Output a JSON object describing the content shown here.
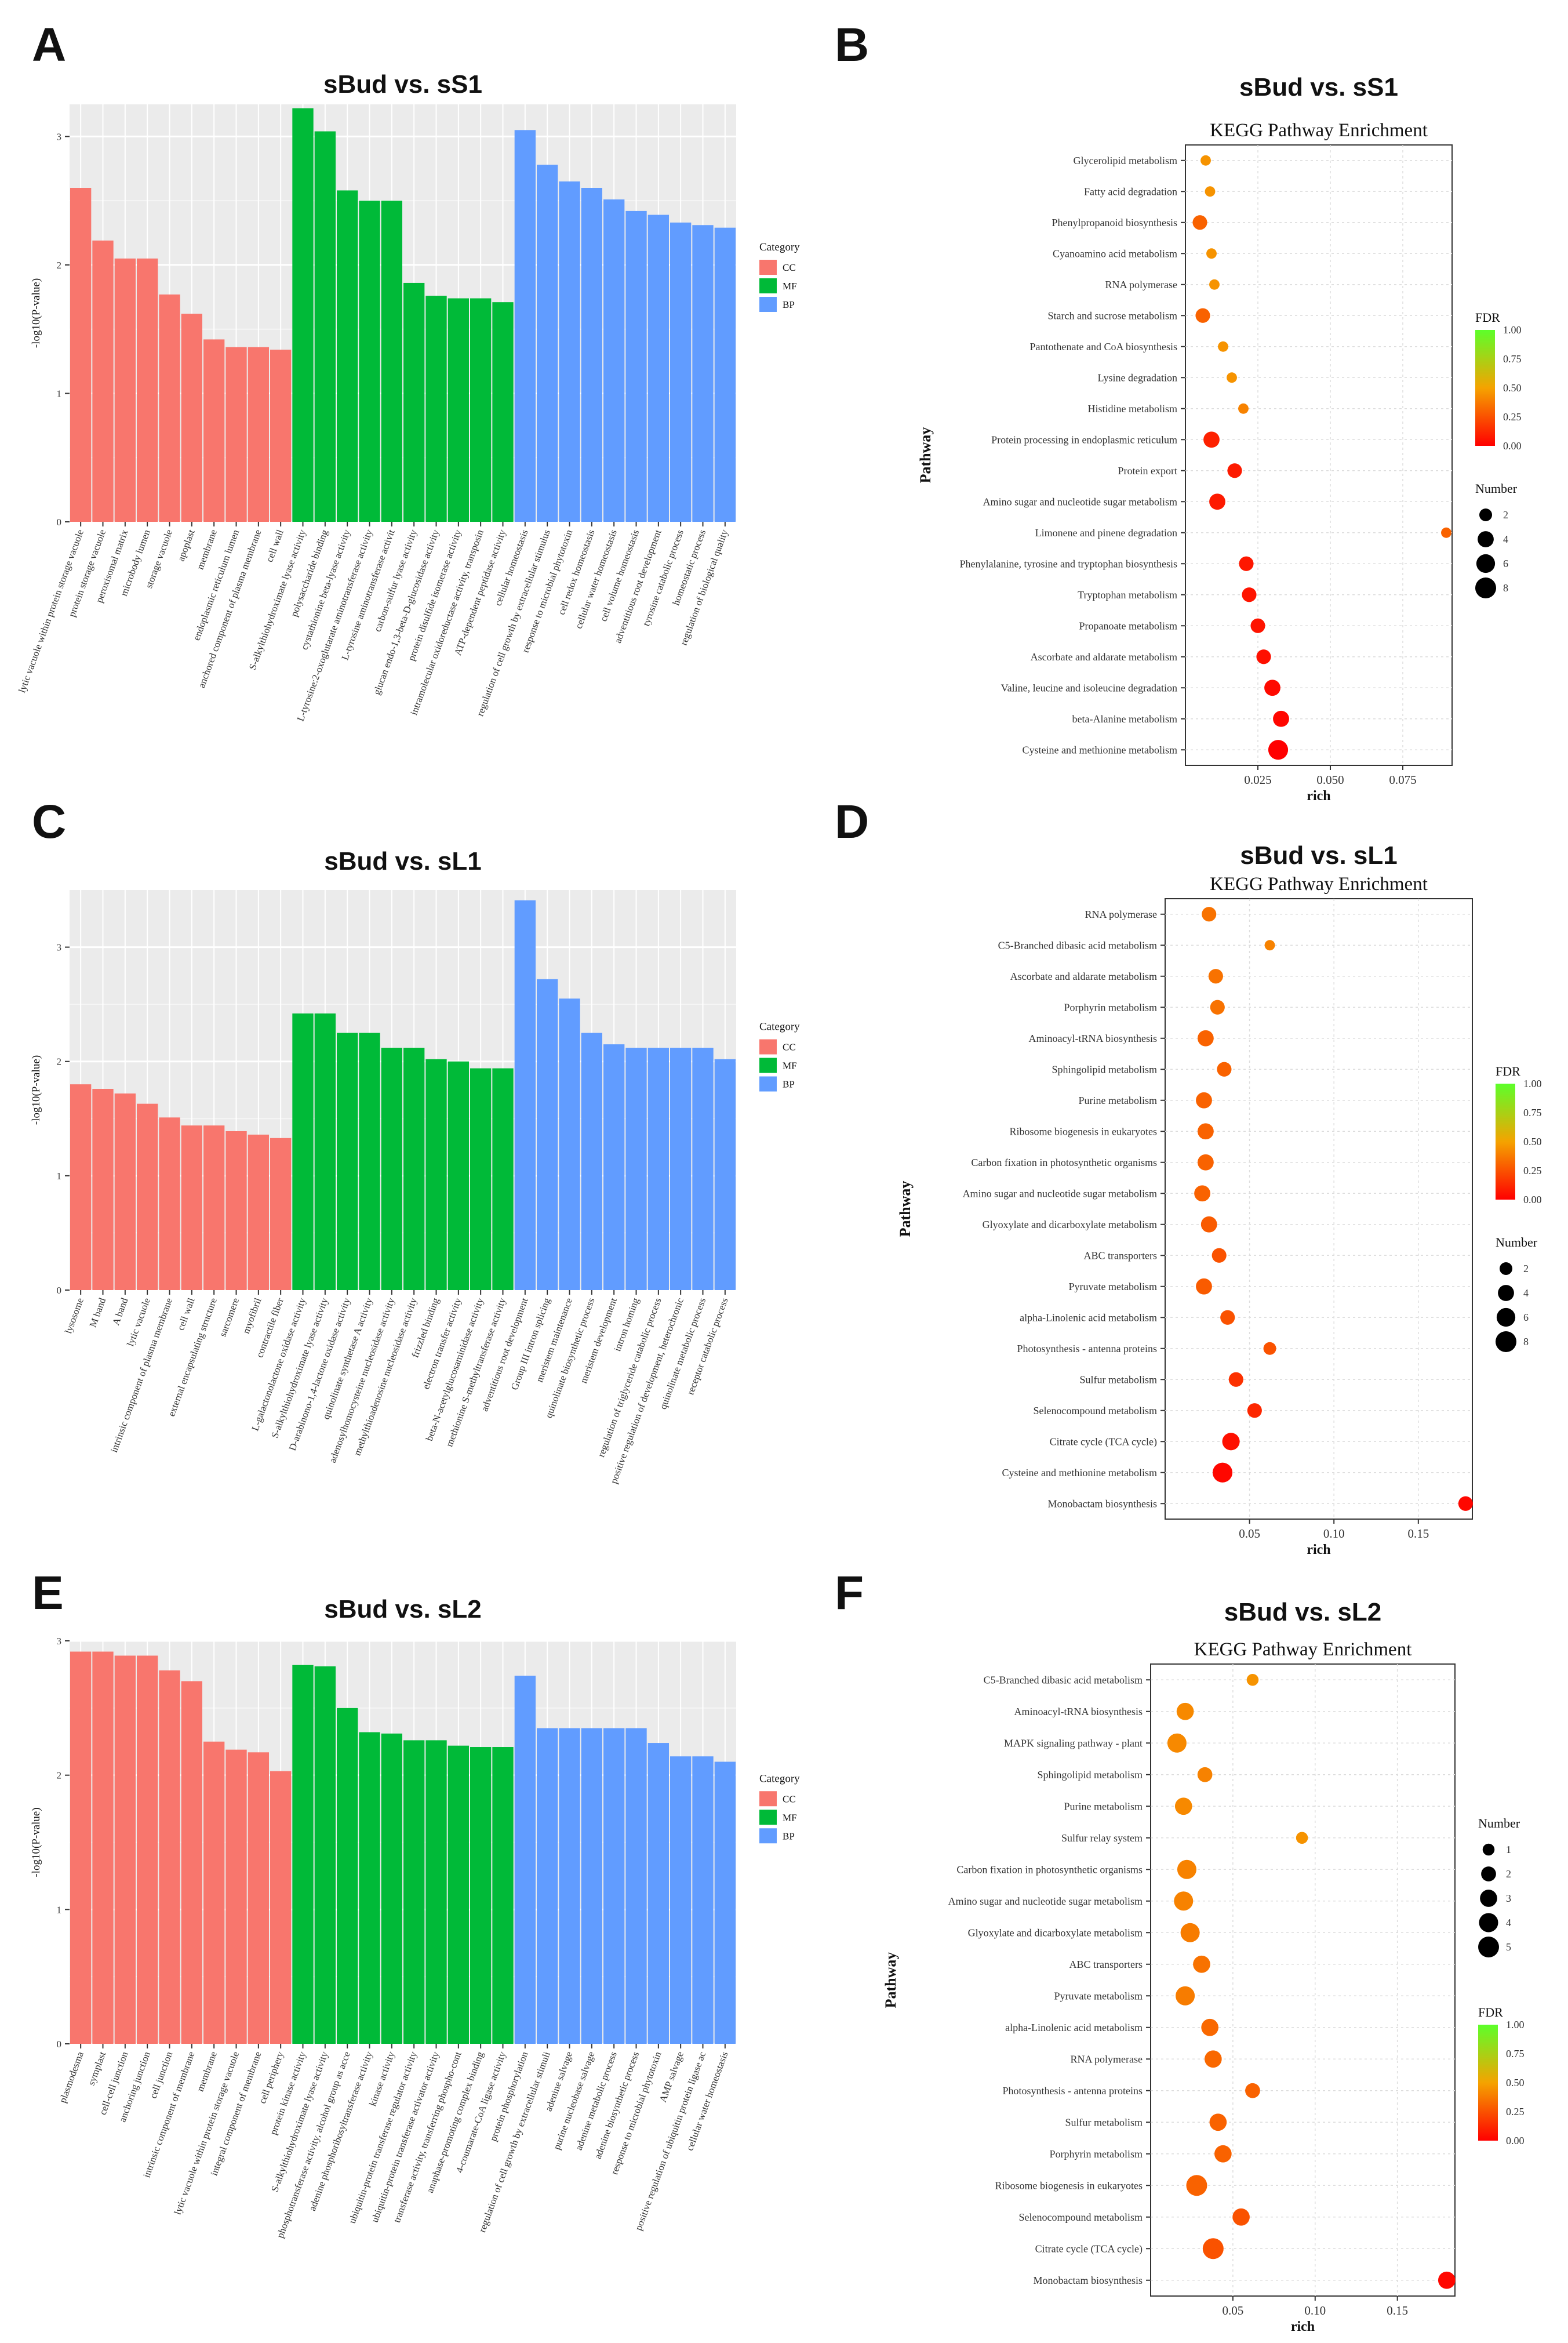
{
  "figure": {
    "colors": {
      "CC": "#F8766D",
      "MF": "#00BA38",
      "BP": "#619CFF",
      "panel_bg": "#EBEBEB",
      "grid": "#FFFFFF",
      "fdr_low": "#FF0000",
      "fdr_mid": "#F5A300",
      "fdr_high": "#5CFF2A"
    }
  },
  "chart_data": [
    {
      "panel": "A",
      "type": "bar",
      "title": "sBud vs. sS1",
      "ylabel": "-log10(P-value)",
      "ylim": [
        0,
        3.25
      ],
      "yticks": [
        0,
        1,
        2,
        3
      ],
      "legend": {
        "title": "Category",
        "items": [
          "CC",
          "MF",
          "BP"
        ],
        "position": "right"
      },
      "categories": [
        "lytic vacuole within protein storage vacuole",
        "protein storage vacuole",
        "peroxisomal matrix",
        "microbody lumen",
        "storage vacuole",
        "apoplast",
        "membrane",
        "endoplasmic reticulum lumen",
        "anchored component of plasma membrane",
        "cell wall",
        "S-alkylthiohydroximate lyase activity",
        "polysaccharide binding",
        "cystathionine beta-lyase activity",
        "L-tyrosine:2-oxoglutarate aminotransferase activity",
        "L-tyrosine aminotransferase activit",
        "carbon-sulfur lyase activity",
        "glucan endo-1,3-beta-D-glucosidase activity",
        "protein disulfide isomerase activity",
        "intramolecular oxidoreductase activity, transposin",
        "ATP-dependent peptidase activity",
        "cellular homeostasis",
        "regulation of cell growth by extracellular stimulus",
        "response to microbial phytotoxin",
        "cell redox homeostasis",
        "cellular water homeostasis",
        "cell volume homeostasis",
        "adventitious root development",
        "tyrosine catabolic process",
        "homeostatic process",
        "regulation of biological quality"
      ],
      "groups": [
        "CC",
        "CC",
        "CC",
        "CC",
        "CC",
        "CC",
        "CC",
        "CC",
        "CC",
        "CC",
        "MF",
        "MF",
        "MF",
        "MF",
        "MF",
        "MF",
        "MF",
        "MF",
        "MF",
        "MF",
        "BP",
        "BP",
        "BP",
        "BP",
        "BP",
        "BP",
        "BP",
        "BP",
        "BP",
        "BP"
      ],
      "values": [
        2.6,
        2.19,
        2.05,
        2.05,
        1.77,
        1.62,
        1.42,
        1.36,
        1.36,
        1.34,
        3.22,
        3.04,
        2.58,
        2.5,
        2.5,
        1.86,
        1.76,
        1.74,
        1.74,
        1.71,
        3.05,
        2.78,
        2.65,
        2.6,
        2.51,
        2.42,
        2.39,
        2.33,
        2.31,
        2.29
      ]
    },
    {
      "panel": "B",
      "type": "scatter",
      "title": "sBud vs. sS1",
      "subtitle": "KEGG Pathway Enrichment",
      "xlabel": "rich",
      "ylabel": "Pathway",
      "xlim": [
        0,
        0.092
      ],
      "xticks": [
        0.025,
        0.05,
        0.075
      ],
      "xtick_labels": [
        "0.025",
        "0.050",
        "0.075"
      ],
      "legend_fdr": {
        "title": "FDR",
        "labels": [
          "1.00",
          "0.75",
          "0.50",
          "0.25",
          "0.00"
        ]
      },
      "legend_number": {
        "title": "Number",
        "labels": [
          "2",
          "4",
          "6",
          "8"
        ],
        "values": [
          2,
          4,
          6,
          8
        ]
      },
      "pathways": [
        "Glycerolipid metabolism",
        "Fatty acid degradation",
        "Phenylpropanoid biosynthesis",
        "Cyanoamino acid metabolism",
        "RNA polymerase",
        "Starch and sucrose metabolism",
        "Pantothenate and CoA biosynthesis",
        "Lysine degradation",
        "Histidine metabolism",
        "Protein processing in endoplasmic reticulum",
        "Protein export",
        "Amino sugar and nucleotide sugar metabolism",
        "Limonene and pinene degradation",
        "Phenylalanine, tyrosine and tryptophan biosynthesis",
        "Tryptophan metabolism",
        "Propanoate metabolism",
        "Ascorbate and aldarate metabolism",
        "Valine, leucine and isoleucine degradation",
        "beta-Alanine metabolism",
        "Cysteine and methionine metabolism"
      ],
      "rich": [
        0.007,
        0.0085,
        0.005,
        0.009,
        0.01,
        0.006,
        0.013,
        0.016,
        0.02,
        0.009,
        0.017,
        0.011,
        0.09,
        0.021,
        0.022,
        0.025,
        0.027,
        0.03,
        0.033,
        0.032
      ],
      "number": [
        1,
        1,
        3,
        1,
        1,
        3,
        1,
        1,
        1,
        4,
        3,
        4,
        1,
        3,
        3,
        3,
        3,
        4,
        4,
        7
      ],
      "fdr": [
        0.45,
        0.45,
        0.3,
        0.45,
        0.45,
        0.3,
        0.45,
        0.45,
        0.4,
        0.1,
        0.08,
        0.08,
        0.3,
        0.07,
        0.06,
        0.06,
        0.05,
        0.03,
        0.02,
        0.0
      ]
    },
    {
      "panel": "C",
      "type": "bar",
      "title": "sBud vs. sL1",
      "ylabel": "-log10(P-value)",
      "ylim": [
        0,
        3.5
      ],
      "yticks": [
        0,
        1,
        2,
        3
      ],
      "legend": {
        "title": "Category",
        "items": [
          "CC",
          "MF",
          "BP"
        ],
        "position": "right"
      },
      "categories": [
        "lysosome",
        "M band",
        "A band",
        "lytic vacuole",
        "intrinsic component of plasma membrane",
        "cell wall",
        "external encapsulating structure",
        "sarcomere",
        "myofibril",
        "contractile fiber",
        "L-galactonolactone oxidase activity",
        "S-alkylthiohydroximate lyase activity",
        "D-arabinono-1,4-lactone oxidase activity",
        "quinolinate synthetase A activity",
        "adenosylhomocysteine nucleosidase activity",
        "methylthioadenosine nucleosidase activity",
        "frizzled binding",
        "electron transfer activity",
        "beta-N-acetylglucosaminidase activity",
        "methionine S-methyltransferase activity",
        "adventitious root development",
        "Group III intron splicing",
        "meristem maintenance",
        "quinolinate biosynthetic process",
        "meristem development",
        "intron homing",
        "regulation of triglyceride catabolic process",
        "positive regulation of development, heterochronic",
        "quinolinate metabolic process",
        "receptor catabolic process"
      ],
      "groups": [
        "CC",
        "CC",
        "CC",
        "CC",
        "CC",
        "CC",
        "CC",
        "CC",
        "CC",
        "CC",
        "MF",
        "MF",
        "MF",
        "MF",
        "MF",
        "MF",
        "MF",
        "MF",
        "MF",
        "MF",
        "BP",
        "BP",
        "BP",
        "BP",
        "BP",
        "BP",
        "BP",
        "BP",
        "BP",
        "BP"
      ],
      "values": [
        1.8,
        1.76,
        1.72,
        1.63,
        1.51,
        1.44,
        1.44,
        1.39,
        1.36,
        1.33,
        2.42,
        2.42,
        2.25,
        2.25,
        2.12,
        2.12,
        2.02,
        2.0,
        1.94,
        1.94,
        3.41,
        2.72,
        2.55,
        2.25,
        2.15,
        2.12,
        2.12,
        2.12,
        2.12,
        2.02
      ]
    },
    {
      "panel": "D",
      "type": "scatter",
      "title": "sBud vs. sL1",
      "subtitle": "KEGG Pathway Enrichment",
      "xlabel": "rich",
      "ylabel": "Pathway",
      "xlim": [
        0,
        0.182
      ],
      "xticks": [
        0.05,
        0.1,
        0.15
      ],
      "xtick_labels": [
        "0.05",
        "0.10",
        "0.15"
      ],
      "legend_fdr": {
        "title": "FDR",
        "labels": [
          "1.00",
          "0.75",
          "0.50",
          "0.25",
          "0.00"
        ]
      },
      "legend_number": {
        "title": "Number",
        "labels": [
          "2",
          "4",
          "6",
          "8"
        ],
        "values": [
          2,
          4,
          6,
          8
        ]
      },
      "pathways": [
        "RNA polymerase",
        "C5-Branched dibasic acid metabolism",
        "Ascorbate and aldarate metabolism",
        "Porphyrin metabolism",
        "Aminoacyl-tRNA biosynthesis",
        "Sphingolipid metabolism",
        "Purine metabolism",
        "Ribosome biogenesis in eukaryotes",
        "Carbon fixation in photosynthetic organisms",
        "Amino sugar and nucleotide sugar metabolism",
        "Glyoxylate and dicarboxylate metabolism",
        "ABC transporters",
        "Pyruvate metabolism",
        "alpha-Linolenic acid metabolism",
        "Photosynthesis - antenna proteins",
        "Sulfur metabolism",
        "Selenocompound metabolism",
        "Citrate cycle (TCA cycle)",
        "Cysteine and methionine metabolism",
        "Monobactam biosynthesis"
      ],
      "rich": [
        0.026,
        0.062,
        0.03,
        0.031,
        0.024,
        0.035,
        0.023,
        0.024,
        0.024,
        0.022,
        0.026,
        0.032,
        0.023,
        0.037,
        0.062,
        0.042,
        0.053,
        0.039,
        0.034,
        0.178
      ],
      "number": [
        3,
        1,
        3,
        3,
        4,
        3,
        4,
        4,
        4,
        4,
        4,
        3,
        4,
        3,
        2,
        3,
        3,
        5,
        7,
        3
      ],
      "fdr": [
        0.35,
        0.4,
        0.35,
        0.35,
        0.3,
        0.3,
        0.3,
        0.3,
        0.3,
        0.3,
        0.28,
        0.25,
        0.28,
        0.25,
        0.25,
        0.15,
        0.12,
        0.05,
        0.02,
        0.02
      ]
    },
    {
      "panel": "E",
      "type": "bar",
      "title": "sBud vs. sL2",
      "ylabel": "-log10(P-value)",
      "ylim": [
        0,
        3.0
      ],
      "yticks": [
        0,
        1,
        2,
        3
      ],
      "legend": {
        "title": "Category",
        "items": [
          "CC",
          "MF",
          "BP"
        ],
        "position": "right"
      },
      "categories": [
        "plasmodesma",
        "symplast",
        "cell-cell junction",
        "anchoring junction",
        "cell junction",
        "intrinsic component of membrane",
        "membrane",
        "lytic vacuole within protein storage vacuole",
        "integral component of membrane",
        "cell periphery",
        "protein kinase activity",
        "S-alkylthiohydroximate lyase activity",
        "phosphotransferase activity, alcohol group as acce",
        "adenine phosphoribosyltransferase activity",
        "kinase activity",
        "ubiquitin-protein transferase regulator activity",
        "ubiquitin-protein transferase activator activity",
        "transferase activity, transferring phospho-cont",
        "anaphase-promoting complex binding",
        "4-coumarate-CoA ligase activity",
        "protein phosphorylation",
        "regulation of cell growth by extracellular stimuli",
        "adenine salvage",
        "purine nucleobase salvage",
        "adenine metabolic process",
        "adenine biosynthetic process",
        "response to microbial phytotoxin",
        "AMP salvage",
        "positive regulation of ubiquitin protein ligase ac",
        "cellular water homeostasis"
      ],
      "groups": [
        "CC",
        "CC",
        "CC",
        "CC",
        "CC",
        "CC",
        "CC",
        "CC",
        "CC",
        "CC",
        "MF",
        "MF",
        "MF",
        "MF",
        "MF",
        "MF",
        "MF",
        "MF",
        "MF",
        "MF",
        "BP",
        "BP",
        "BP",
        "BP",
        "BP",
        "BP",
        "BP",
        "BP",
        "BP",
        "BP"
      ],
      "values": [
        2.92,
        2.92,
        2.89,
        2.89,
        2.78,
        2.7,
        2.25,
        2.19,
        2.17,
        2.03,
        2.82,
        2.81,
        2.5,
        2.32,
        2.31,
        2.26,
        2.26,
        2.22,
        2.21,
        2.21,
        2.74,
        2.35,
        2.35,
        2.35,
        2.35,
        2.35,
        2.24,
        2.14,
        2.14,
        2.1
      ]
    },
    {
      "panel": "F",
      "type": "scatter",
      "title": "sBud vs. sL2",
      "subtitle": "KEGG Pathway Enrichment",
      "xlabel": "rich",
      "ylabel": "Pathway",
      "xlim": [
        0,
        0.185
      ],
      "xticks": [
        0.05,
        0.1,
        0.15
      ],
      "xtick_labels": [
        "0.05",
        "0.10",
        "0.15"
      ],
      "legend_fdr": {
        "title": "FDR",
        "labels": [
          "1.00",
          "0.75",
          "0.50",
          "0.25",
          "0.00"
        ]
      },
      "legend_number": {
        "title": "Number",
        "labels": [
          "1",
          "2",
          "3",
          "4",
          "5"
        ],
        "values": [
          1,
          2,
          3,
          4,
          5
        ]
      },
      "pathways": [
        "C5-Branched dibasic acid metabolism",
        "Aminoacyl-tRNA biosynthesis",
        "MAPK signaling pathway - plant",
        "Sphingolipid metabolism",
        "Purine metabolism",
        "Sulfur relay system",
        "Carbon fixation in photosynthetic organisms",
        "Amino sugar and nucleotide sugar metabolism",
        "Glyoxylate and dicarboxylate metabolism",
        "ABC transporters",
        "Pyruvate metabolism",
        "alpha-Linolenic acid metabolism",
        "RNA polymerase",
        "Photosynthesis - antenna proteins",
        "Sulfur metabolism",
        "Porphyrin metabolism",
        "Ribosome biogenesis in eukaryotes",
        "Selenocompound metabolism",
        "Citrate cycle (TCA cycle)",
        "Monobactam biosynthesis"
      ],
      "rich": [
        0.062,
        0.021,
        0.016,
        0.033,
        0.02,
        0.092,
        0.022,
        0.02,
        0.024,
        0.031,
        0.021,
        0.036,
        0.038,
        0.062,
        0.041,
        0.044,
        0.028,
        0.055,
        0.038,
        0.18
      ],
      "number": [
        1,
        3,
        4,
        2,
        3,
        1,
        4,
        4,
        4,
        3,
        4,
        3,
        3,
        2,
        3,
        3,
        5,
        3,
        5,
        3
      ],
      "fdr": [
        0.45,
        0.42,
        0.42,
        0.4,
        0.42,
        0.45,
        0.4,
        0.4,
        0.38,
        0.35,
        0.38,
        0.32,
        0.32,
        0.3,
        0.3,
        0.3,
        0.3,
        0.25,
        0.25,
        0.02
      ]
    }
  ],
  "panels": {
    "A": {
      "letter": "A"
    },
    "B": {
      "letter": "B"
    },
    "C": {
      "letter": "C"
    },
    "D": {
      "letter": "D"
    },
    "E": {
      "letter": "E"
    },
    "F": {
      "letter": "F"
    }
  }
}
